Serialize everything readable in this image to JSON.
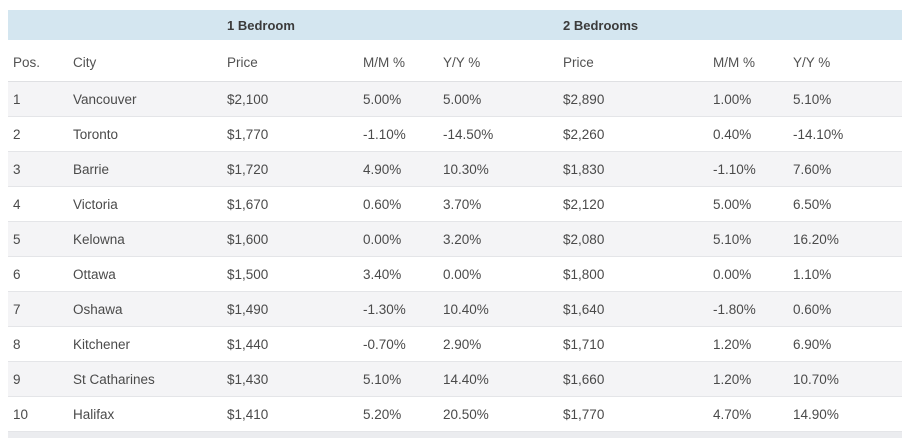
{
  "chart_data": {
    "type": "table",
    "group_headers": [
      "1 Bedroom",
      "2 Bedrooms"
    ],
    "columns": [
      "Pos.",
      "City",
      "Price",
      "M/M %",
      "Y/Y %",
      "Price",
      "M/M %",
      "Y/Y %"
    ],
    "rows": [
      [
        "1",
        "Vancouver",
        "$2,100",
        "5.00%",
        "5.00%",
        "$2,890",
        "1.00%",
        "5.10%"
      ],
      [
        "2",
        "Toronto",
        "$1,770",
        "-1.10%",
        "-14.50%",
        "$2,260",
        "0.40%",
        "-14.10%"
      ],
      [
        "3",
        "Barrie",
        "$1,720",
        "4.90%",
        "10.30%",
        "$1,830",
        "-1.10%",
        "7.60%"
      ],
      [
        "4",
        "Victoria",
        "$1,670",
        "0.60%",
        "3.70%",
        "$2,120",
        "5.00%",
        "6.50%"
      ],
      [
        "5",
        "Kelowna",
        "$1,600",
        "0.00%",
        "3.20%",
        "$2,080",
        "5.10%",
        "16.20%"
      ],
      [
        "6",
        "Ottawa",
        "$1,500",
        "3.40%",
        "0.00%",
        "$1,800",
        "0.00%",
        "1.10%"
      ],
      [
        "7",
        "Oshawa",
        "$1,490",
        "-1.30%",
        "10.40%",
        "$1,640",
        "-1.80%",
        "0.60%"
      ],
      [
        "8",
        "Kitchener",
        "$1,440",
        "-0.70%",
        "2.90%",
        "$1,710",
        "1.20%",
        "6.90%"
      ],
      [
        "9",
        "St Catharines",
        "$1,430",
        "5.10%",
        "14.40%",
        "$1,660",
        "1.20%",
        "10.70%"
      ],
      [
        "10",
        "Halifax",
        "$1,410",
        "5.20%",
        "20.50%",
        "$1,770",
        "4.70%",
        "14.90%"
      ]
    ],
    "layout": {
      "grid": "horizontal-row-borders",
      "zebra_striping": true,
      "group_header_background": "#d4e6f0"
    }
  },
  "colors": {
    "band": "#d4e6f0",
    "stripe": "#f4f4f6",
    "border": "#e4e5e8",
    "text": "#4a4a4a",
    "band_text": "#3b3b3b",
    "strip_bg": "#ebecef"
  }
}
